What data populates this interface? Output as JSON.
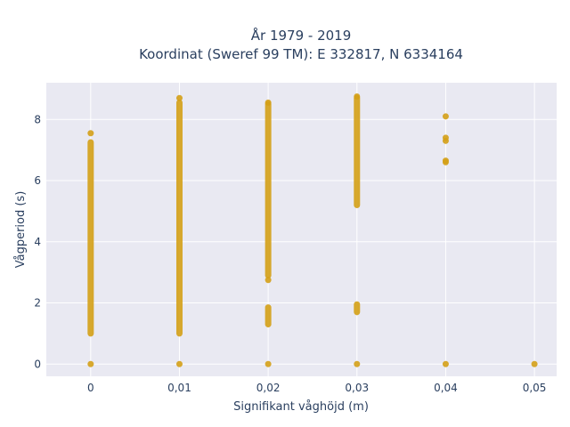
{
  "chart_data": {
    "type": "scatter",
    "title_line1": "År 1979 - 2019",
    "title_line2": "Koordinat (Sweref 99 TM): E 332817, N 6334164",
    "xlabel": "Signifikant våghöjd (m)",
    "ylabel": "Vågperiod (s)",
    "xlim": [
      -0.005,
      0.0525
    ],
    "ylim": [
      -0.4,
      9.2
    ],
    "x_ticks": [
      0,
      0.01,
      0.02,
      0.03,
      0.04,
      0.05
    ],
    "x_tick_labels": [
      "0",
      "0,01",
      "0,02",
      "0,03",
      "0,04",
      "0,05"
    ],
    "y_ticks": [
      0,
      2,
      4,
      6,
      8
    ],
    "y_tick_labels": [
      "0",
      "2",
      "4",
      "6",
      "8"
    ],
    "grid": true,
    "colors": {
      "marker": "#D4A017",
      "plot_bg": "#E9E9F2",
      "grid": "#ffffff",
      "text": "#2a3f5f"
    },
    "segments": [
      {
        "x": 0,
        "y_from": 1.0,
        "y_to": 7.25
      },
      {
        "x": 0.01,
        "y_from": 1.0,
        "y_to": 8.55
      },
      {
        "x": 0.02,
        "y_from": 2.9,
        "y_to": 8.5
      },
      {
        "x": 0.02,
        "y_from": 1.3,
        "y_to": 1.85
      },
      {
        "x": 0.03,
        "y_from": 5.2,
        "y_to": 8.7
      },
      {
        "x": 0.03,
        "y_from": 1.7,
        "y_to": 1.95
      }
    ],
    "points": [
      {
        "x": 0,
        "y": 0
      },
      {
        "x": 0,
        "y": 7.55
      },
      {
        "x": 0.01,
        "y": 0
      },
      {
        "x": 0.01,
        "y": 8.7
      },
      {
        "x": 0.02,
        "y": 0
      },
      {
        "x": 0.02,
        "y": 2.75
      },
      {
        "x": 0.02,
        "y": 8.55
      },
      {
        "x": 0.03,
        "y": 0
      },
      {
        "x": 0.03,
        "y": 8.75
      },
      {
        "x": 0.04,
        "y": 0
      },
      {
        "x": 0.04,
        "y": 6.6
      },
      {
        "x": 0.04,
        "y": 6.65
      },
      {
        "x": 0.04,
        "y": 7.3
      },
      {
        "x": 0.04,
        "y": 7.4
      },
      {
        "x": 0.04,
        "y": 8.1
      },
      {
        "x": 0.05,
        "y": 0
      }
    ]
  }
}
